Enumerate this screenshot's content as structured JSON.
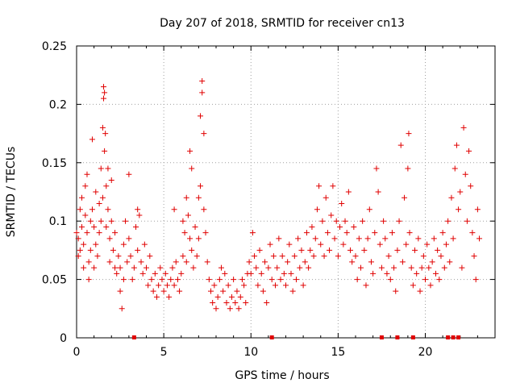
{
  "chart_data": {
    "type": "scatter",
    "title": "Day 207 of 2018, SRMTID for receiver cn13",
    "xlabel": "GPS time / hours",
    "ylabel": "SRMTID / TECUs",
    "xlim": [
      0,
      24
    ],
    "ylim": [
      0,
      0.25
    ],
    "x_ticks": [
      0,
      5,
      10,
      15,
      20
    ],
    "x_tick_labels": [
      "0",
      "5",
      "10",
      "15",
      "20"
    ],
    "y_ticks": [
      0,
      0.05,
      0.1,
      0.15,
      0.2,
      0.25
    ],
    "y_tick_labels": [
      "0",
      "0.05",
      "0.1",
      "0.15",
      "0.2",
      "0.25"
    ],
    "grid": true,
    "marker": "+",
    "color": "#e00000",
    "series": [
      {
        "name": "SRMTID",
        "points": [
          [
            0.0,
            0.09
          ],
          [
            0.1,
            0.085
          ],
          [
            0.1,
            0.07
          ],
          [
            0.2,
            0.11
          ],
          [
            0.2,
            0.075
          ],
          [
            0.3,
            0.12
          ],
          [
            0.3,
            0.095
          ],
          [
            0.4,
            0.08
          ],
          [
            0.4,
            0.06
          ],
          [
            0.5,
            0.13
          ],
          [
            0.5,
            0.105
          ],
          [
            0.6,
            0.14
          ],
          [
            0.6,
            0.09
          ],
          [
            0.7,
            0.065
          ],
          [
            0.7,
            0.05
          ],
          [
            0.8,
            0.1
          ],
          [
            0.8,
            0.075
          ],
          [
            0.9,
            0.17
          ],
          [
            0.9,
            0.11
          ],
          [
            1.0,
            0.095
          ],
          [
            1.0,
            0.06
          ],
          [
            1.1,
            0.125
          ],
          [
            1.1,
            0.08
          ],
          [
            1.2,
            0.07
          ],
          [
            1.3,
            0.115
          ],
          [
            1.3,
            0.09
          ],
          [
            1.4,
            0.145
          ],
          [
            1.4,
            0.1
          ],
          [
            1.5,
            0.18
          ],
          [
            1.5,
            0.12
          ],
          [
            1.55,
            0.215
          ],
          [
            1.55,
            0.205
          ],
          [
            1.6,
            0.21
          ],
          [
            1.6,
            0.16
          ],
          [
            1.65,
            0.175
          ],
          [
            1.7,
            0.13
          ],
          [
            1.7,
            0.095
          ],
          [
            1.8,
            0.145
          ],
          [
            1.8,
            0.11
          ],
          [
            1.9,
            0.085
          ],
          [
            1.9,
            0.065
          ],
          [
            2.0,
            0.135
          ],
          [
            2.0,
            0.1
          ],
          [
            2.1,
            0.075
          ],
          [
            2.2,
            0.06
          ],
          [
            2.2,
            0.09
          ],
          [
            2.3,
            0.055
          ],
          [
            2.4,
            0.07
          ],
          [
            2.5,
            0.04
          ],
          [
            2.5,
            0.06
          ],
          [
            2.6,
            0.025
          ],
          [
            2.7,
            0.05
          ],
          [
            2.7,
            0.08
          ],
          [
            2.8,
            0.1
          ],
          [
            2.9,
            0.065
          ],
          [
            3.0,
            0.14
          ],
          [
            3.0,
            0.085
          ],
          [
            3.1,
            0.07
          ],
          [
            3.2,
            0.05
          ],
          [
            3.3,
            0.06
          ],
          [
            3.4,
            0.095
          ],
          [
            3.5,
            0.11
          ],
          [
            3.5,
            0.075
          ],
          [
            3.6,
            0.105
          ],
          [
            3.7,
            0.065
          ],
          [
            3.8,
            0.055
          ],
          [
            3.9,
            0.08
          ],
          [
            4.0,
            0.06
          ],
          [
            4.1,
            0.045
          ],
          [
            4.2,
            0.07
          ],
          [
            4.3,
            0.05
          ],
          [
            4.4,
            0.04
          ],
          [
            4.5,
            0.055
          ],
          [
            4.6,
            0.035
          ],
          [
            4.7,
            0.045
          ],
          [
            4.8,
            0.06
          ],
          [
            4.9,
            0.05
          ],
          [
            5.0,
            0.04
          ],
          [
            5.1,
            0.055
          ],
          [
            5.2,
            0.045
          ],
          [
            5.3,
            0.035
          ],
          [
            5.4,
            0.05
          ],
          [
            5.5,
            0.06
          ],
          [
            5.6,
            0.11
          ],
          [
            5.6,
            0.045
          ],
          [
            5.7,
            0.065
          ],
          [
            5.8,
            0.05
          ],
          [
            5.9,
            0.04
          ],
          [
            6.0,
            0.055
          ],
          [
            6.1,
            0.1
          ],
          [
            6.1,
            0.07
          ],
          [
            6.2,
            0.09
          ],
          [
            6.3,
            0.12
          ],
          [
            6.3,
            0.065
          ],
          [
            6.4,
            0.105
          ],
          [
            6.5,
            0.16
          ],
          [
            6.5,
            0.085
          ],
          [
            6.6,
            0.145
          ],
          [
            6.6,
            0.075
          ],
          [
            6.7,
            0.06
          ],
          [
            6.8,
            0.095
          ],
          [
            6.9,
            0.07
          ],
          [
            7.0,
            0.12
          ],
          [
            7.0,
            0.085
          ],
          [
            7.1,
            0.19
          ],
          [
            7.1,
            0.13
          ],
          [
            7.2,
            0.22
          ],
          [
            7.2,
            0.21
          ],
          [
            7.3,
            0.175
          ],
          [
            7.3,
            0.11
          ],
          [
            7.4,
            0.09
          ],
          [
            7.5,
            0.065
          ],
          [
            7.6,
            0.05
          ],
          [
            7.7,
            0.04
          ],
          [
            7.8,
            0.03
          ],
          [
            7.9,
            0.045
          ],
          [
            8.0,
            0.025
          ],
          [
            8.1,
            0.035
          ],
          [
            8.2,
            0.05
          ],
          [
            8.3,
            0.06
          ],
          [
            8.4,
            0.04
          ],
          [
            8.5,
            0.055
          ],
          [
            8.6,
            0.03
          ],
          [
            8.7,
            0.045
          ],
          [
            8.8,
            0.025
          ],
          [
            8.9,
            0.035
          ],
          [
            9.0,
            0.05
          ],
          [
            9.1,
            0.03
          ],
          [
            9.2,
            0.04
          ],
          [
            9.3,
            0.025
          ],
          [
            9.4,
            0.035
          ],
          [
            9.5,
            0.05
          ],
          [
            9.6,
            0.045
          ],
          [
            9.7,
            0.03
          ],
          [
            9.8,
            0.055
          ],
          [
            9.9,
            0.065
          ],
          [
            10.0,
            0.055
          ],
          [
            10.1,
            0.09
          ],
          [
            10.2,
            0.07
          ],
          [
            10.3,
            0.06
          ],
          [
            10.4,
            0.045
          ],
          [
            10.5,
            0.075
          ],
          [
            10.6,
            0.055
          ],
          [
            10.7,
            0.04
          ],
          [
            10.8,
            0.065
          ],
          [
            10.9,
            0.03
          ],
          [
            11.0,
            0.06
          ],
          [
            11.1,
            0.08
          ],
          [
            11.2,
            0.05
          ],
          [
            11.3,
            0.07
          ],
          [
            11.4,
            0.045
          ],
          [
            11.5,
            0.06
          ],
          [
            11.6,
            0.085
          ],
          [
            11.7,
            0.05
          ],
          [
            11.8,
            0.07
          ],
          [
            11.9,
            0.055
          ],
          [
            12.0,
            0.045
          ],
          [
            12.1,
            0.065
          ],
          [
            12.2,
            0.08
          ],
          [
            12.3,
            0.055
          ],
          [
            12.4,
            0.04
          ],
          [
            12.5,
            0.07
          ],
          [
            12.6,
            0.05
          ],
          [
            12.7,
            0.085
          ],
          [
            12.8,
            0.06
          ],
          [
            12.9,
            0.075
          ],
          [
            13.0,
            0.045
          ],
          [
            13.1,
            0.065
          ],
          [
            13.2,
            0.09
          ],
          [
            13.3,
            0.06
          ],
          [
            13.4,
            0.075
          ],
          [
            13.5,
            0.095
          ],
          [
            13.6,
            0.07
          ],
          [
            13.7,
            0.085
          ],
          [
            13.8,
            0.11
          ],
          [
            13.9,
            0.13
          ],
          [
            14.0,
            0.08
          ],
          [
            14.1,
            0.1
          ],
          [
            14.2,
            0.07
          ],
          [
            14.3,
            0.12
          ],
          [
            14.4,
            0.09
          ],
          [
            14.5,
            0.075
          ],
          [
            14.6,
            0.105
          ],
          [
            14.7,
            0.13
          ],
          [
            14.8,
            0.085
          ],
          [
            14.9,
            0.1
          ],
          [
            15.0,
            0.07
          ],
          [
            15.1,
            0.095
          ],
          [
            15.2,
            0.115
          ],
          [
            15.3,
            0.08
          ],
          [
            15.4,
            0.1
          ],
          [
            15.5,
            0.09
          ],
          [
            15.6,
            0.125
          ],
          [
            15.7,
            0.075
          ],
          [
            15.8,
            0.065
          ],
          [
            15.9,
            0.095
          ],
          [
            16.0,
            0.07
          ],
          [
            16.1,
            0.05
          ],
          [
            16.2,
            0.085
          ],
          [
            16.3,
            0.06
          ],
          [
            16.4,
            0.1
          ],
          [
            16.5,
            0.075
          ],
          [
            16.6,
            0.045
          ],
          [
            16.7,
            0.085
          ],
          [
            16.8,
            0.11
          ],
          [
            16.9,
            0.065
          ],
          [
            17.0,
            0.055
          ],
          [
            17.1,
            0.09
          ],
          [
            17.2,
            0.145
          ],
          [
            17.3,
            0.125
          ],
          [
            17.4,
            0.08
          ],
          [
            17.5,
            0.06
          ],
          [
            17.6,
            0.1
          ],
          [
            17.7,
            0.085
          ],
          [
            17.8,
            0.055
          ],
          [
            17.9,
            0.07
          ],
          [
            18.0,
            0.05
          ],
          [
            18.1,
            0.09
          ],
          [
            18.2,
            0.06
          ],
          [
            18.3,
            0.04
          ],
          [
            18.4,
            0.075
          ],
          [
            18.5,
            0.1
          ],
          [
            18.6,
            0.165
          ],
          [
            18.7,
            0.065
          ],
          [
            18.8,
            0.12
          ],
          [
            18.9,
            0.08
          ],
          [
            19.0,
            0.145
          ],
          [
            19.05,
            0.175
          ],
          [
            19.1,
            0.09
          ],
          [
            19.2,
            0.06
          ],
          [
            19.3,
            0.045
          ],
          [
            19.4,
            0.075
          ],
          [
            19.5,
            0.055
          ],
          [
            19.6,
            0.085
          ],
          [
            19.7,
            0.04
          ],
          [
            19.8,
            0.06
          ],
          [
            19.9,
            0.07
          ],
          [
            20.0,
            0.05
          ],
          [
            20.1,
            0.08
          ],
          [
            20.2,
            0.06
          ],
          [
            20.3,
            0.045
          ],
          [
            20.4,
            0.065
          ],
          [
            20.5,
            0.085
          ],
          [
            20.6,
            0.055
          ],
          [
            20.7,
            0.075
          ],
          [
            20.8,
            0.05
          ],
          [
            20.9,
            0.07
          ],
          [
            21.0,
            0.09
          ],
          [
            21.1,
            0.06
          ],
          [
            21.2,
            0.08
          ],
          [
            21.3,
            0.1
          ],
          [
            21.4,
            0.065
          ],
          [
            21.5,
            0.12
          ],
          [
            21.6,
            0.085
          ],
          [
            21.7,
            0.145
          ],
          [
            21.8,
            0.165
          ],
          [
            21.9,
            0.11
          ],
          [
            22.0,
            0.125
          ],
          [
            22.1,
            0.06
          ],
          [
            22.2,
            0.18
          ],
          [
            22.3,
            0.14
          ],
          [
            22.4,
            0.1
          ],
          [
            22.5,
            0.16
          ],
          [
            22.6,
            0.13
          ],
          [
            22.7,
            0.09
          ],
          [
            22.8,
            0.07
          ],
          [
            22.9,
            0.05
          ],
          [
            23.0,
            0.11
          ],
          [
            23.1,
            0.085
          ]
        ]
      },
      {
        "name": "zero-level markers",
        "points": [
          [
            3.3,
            0.0
          ],
          [
            11.2,
            0.0
          ],
          [
            17.5,
            0.0
          ],
          [
            18.4,
            0.0
          ],
          [
            19.3,
            0.0
          ],
          [
            21.3,
            0.0
          ],
          [
            21.6,
            0.0
          ],
          [
            21.9,
            0.0
          ]
        ]
      }
    ]
  }
}
